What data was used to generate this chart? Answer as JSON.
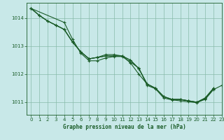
{
  "background_color": "#c8e8e8",
  "plot_bg_color": "#c8e8e8",
  "grid_color": "#88bbaa",
  "line_color": "#1a5c28",
  "xlabel": "Graphe pression niveau de la mer (hPa)",
  "xlim": [
    -0.5,
    23
  ],
  "ylim": [
    1010.55,
    1014.55
  ],
  "yticks": [
    1011,
    1012,
    1013,
    1014
  ],
  "xticks": [
    0,
    1,
    2,
    3,
    4,
    5,
    6,
    7,
    8,
    9,
    10,
    11,
    12,
    13,
    14,
    15,
    16,
    17,
    18,
    19,
    20,
    21,
    22,
    23
  ],
  "series": [
    {
      "x": [
        0,
        1,
        2,
        3,
        4,
        5,
        6,
        7,
        8,
        9,
        10,
        11,
        12,
        13,
        14,
        15,
        16,
        17,
        18,
        19,
        20,
        21,
        22
      ],
      "y": [
        1014.35,
        1014.1,
        1013.9,
        1013.75,
        1013.6,
        1013.15,
        1012.8,
        1012.55,
        1012.6,
        1012.65,
        1012.65,
        1012.65,
        1012.5,
        1012.2,
        1011.65,
        1011.5,
        1011.2,
        1011.1,
        1011.1,
        1011.05,
        1011.0,
        1011.15,
        1011.5
      ]
    },
    {
      "x": [
        0,
        1,
        2,
        3,
        4,
        5,
        6,
        7,
        8,
        9,
        10,
        11,
        12,
        13,
        14,
        15,
        16,
        17,
        18,
        19,
        20,
        21,
        22,
        23
      ],
      "y": [
        1014.35,
        1014.1,
        1013.9,
        1013.75,
        1013.6,
        1013.15,
        1012.8,
        1012.55,
        1012.6,
        1012.7,
        1012.7,
        1012.65,
        1012.4,
        1012.0,
        1011.65,
        1011.5,
        1011.2,
        1011.1,
        1011.1,
        1011.05,
        1011.0,
        1011.1,
        1011.45,
        1011.6
      ]
    },
    {
      "x": [
        0,
        4,
        5,
        6,
        7,
        8,
        9,
        10,
        11,
        12,
        13,
        14,
        15,
        16,
        17,
        18,
        19,
        20,
        21,
        22
      ],
      "y": [
        1014.35,
        1013.85,
        1013.25,
        1012.75,
        1012.48,
        1012.48,
        1012.58,
        1012.63,
        1012.63,
        1012.43,
        1012.22,
        1011.6,
        1011.48,
        1011.15,
        1011.08,
        1011.05,
        1011.02,
        1010.98,
        1011.12,
        1011.48
      ]
    },
    {
      "x": [
        0,
        1,
        2,
        3,
        4,
        5,
        6,
        7,
        8,
        9,
        10,
        11,
        12,
        13,
        14,
        15,
        16,
        17,
        18,
        19,
        20,
        21,
        22
      ],
      "y": [
        1014.35,
        1014.1,
        1013.9,
        1013.75,
        1013.6,
        1013.15,
        1012.8,
        1012.55,
        1012.6,
        1012.65,
        1012.65,
        1012.65,
        1012.5,
        1012.2,
        1011.65,
        1011.5,
        1011.2,
        1011.1,
        1011.1,
        1011.05,
        1011.0,
        1011.15,
        1011.5
      ]
    }
  ]
}
